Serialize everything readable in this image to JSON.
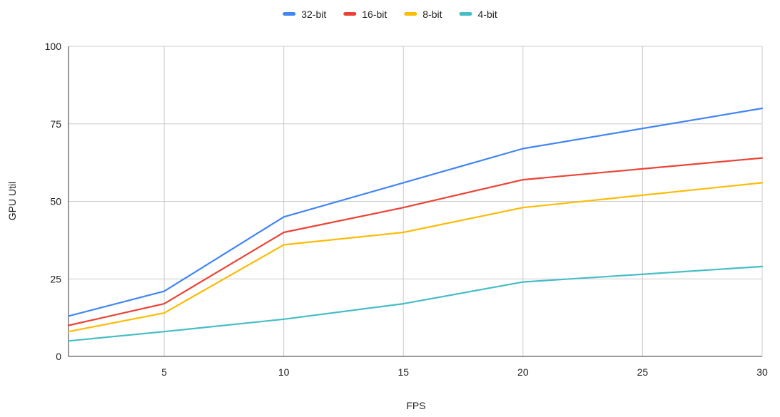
{
  "chart_data": {
    "type": "line",
    "title": "",
    "xlabel": "FPS",
    "ylabel": "GPU Util",
    "xlim": [
      1,
      30
    ],
    "ylim": [
      0,
      100
    ],
    "x_ticks": [
      5,
      10,
      15,
      20,
      25,
      30
    ],
    "y_ticks": [
      0,
      25,
      50,
      75,
      100
    ],
    "grid": true,
    "legend_position": "top-center",
    "x": [
      1,
      5,
      10,
      15,
      20,
      30
    ],
    "series": [
      {
        "name": "32-bit",
        "color": "#4285f4",
        "values": [
          13,
          21,
          45,
          56,
          67,
          80
        ]
      },
      {
        "name": "16-bit",
        "color": "#ea4335",
        "values": [
          10,
          17,
          40,
          48,
          57,
          64
        ]
      },
      {
        "name": "8-bit",
        "color": "#fbbc04",
        "values": [
          8,
          14,
          36,
          40,
          48,
          56
        ]
      },
      {
        "name": "4-bit",
        "color": "#46bdc6",
        "values": [
          5,
          8,
          12,
          17,
          24,
          29
        ]
      }
    ]
  }
}
